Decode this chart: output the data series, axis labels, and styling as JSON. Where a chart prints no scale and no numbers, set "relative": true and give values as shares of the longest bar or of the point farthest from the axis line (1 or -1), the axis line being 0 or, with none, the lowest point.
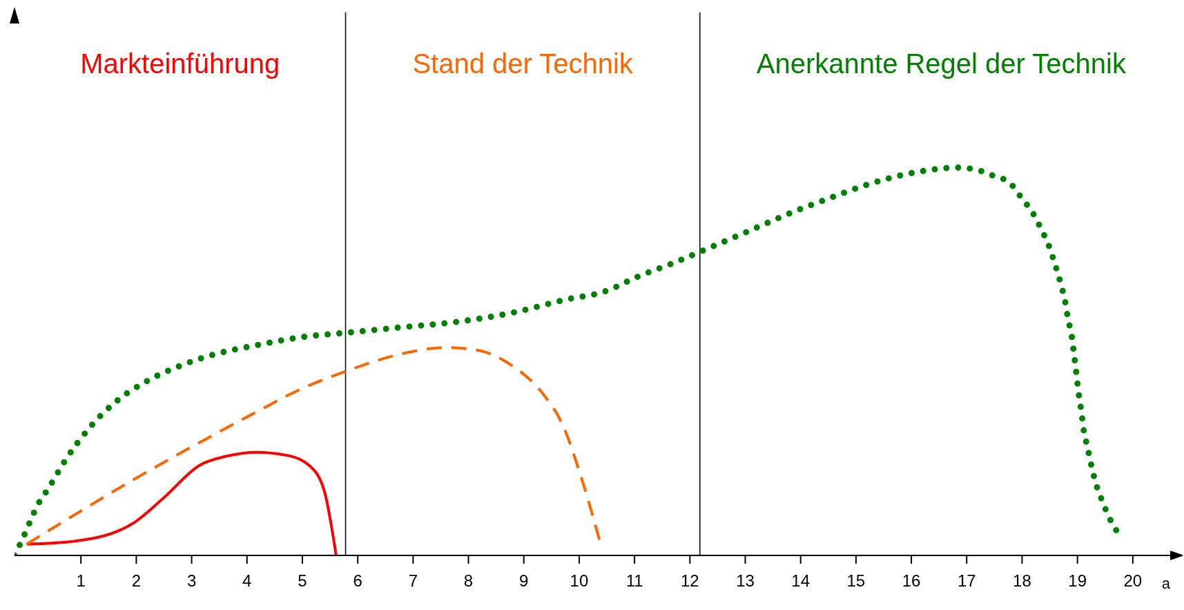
{
  "chart_data": {
    "type": "line",
    "relative": true,
    "xlabel": "a",
    "xlim": [
      -0.2,
      20.9
    ],
    "xticks": [
      1,
      2,
      3,
      4,
      5,
      6,
      7,
      8,
      9,
      10,
      11,
      12,
      13,
      14,
      15,
      16,
      17,
      18,
      19,
      20
    ],
    "grid": false,
    "legend": false,
    "ref_lines": [
      {
        "axis": "x",
        "value": 5.78,
        "color": "#000000"
      },
      {
        "axis": "x",
        "value": 12.18,
        "color": "#000000"
      }
    ],
    "series": [
      {
        "name": "Markteinführung",
        "color": "#ff0000",
        "line_style": "solid",
        "x": [
          0.02,
          0.9,
          1.92,
          2.47,
          3.15,
          3.63,
          4.17,
          4.72,
          5.13,
          5.4,
          5.61
        ],
        "values": [
          0.029,
          0.037,
          0.081,
          0.145,
          0.233,
          0.256,
          0.266,
          0.258,
          0.231,
          0.164,
          0
        ]
      },
      {
        "name": "Stand der Technik",
        "color": "#ff6600",
        "line_style": "dashed",
        "x": [
          0.02,
          0.9,
          1.92,
          2.95,
          4.04,
          4.99,
          5.81,
          6.63,
          7.59,
          8.13,
          8.81,
          9.36,
          9.7,
          10.04,
          10.38
        ],
        "values": [
          0.029,
          0.106,
          0.193,
          0.276,
          0.36,
          0.43,
          0.476,
          0.514,
          0.536,
          0.53,
          0.487,
          0.414,
          0.337,
          0.2,
          0.033
        ]
      },
      {
        "name": "Anerkannte Regel der Technik",
        "color": "#008000",
        "line_style": "dotted",
        "x": [
          -0.2,
          -0.05,
          0.08,
          0.23,
          0.4,
          0.74,
          1.16,
          1.62,
          2.2,
          2.81,
          3.45,
          4.1,
          5.1,
          5.78,
          6.77,
          7.84,
          8.8,
          9.77,
          10.45,
          11.08,
          11.72,
          12.3,
          12.96,
          13.87,
          14.5,
          15.16,
          15.81,
          16.45,
          16.8,
          17.13,
          17.46,
          17.78,
          18.0,
          18.19,
          18.35,
          18.49,
          18.6,
          18.7,
          18.78,
          18.83,
          18.9,
          18.94,
          18.98,
          19.02,
          19.07,
          19.11,
          19.18,
          19.25,
          19.33,
          19.44,
          19.58,
          19.74
        ],
        "values": [
          0,
          0.044,
          0.087,
          0.133,
          0.17,
          0.25,
          0.33,
          0.395,
          0.45,
          0.49,
          0.52,
          0.54,
          0.565,
          0.574,
          0.588,
          0.603,
          0.626,
          0.66,
          0.68,
          0.72,
          0.755,
          0.79,
          0.83,
          0.886,
          0.92,
          0.954,
          0.98,
          0.996,
          1,
          0.996,
          0.98,
          0.96,
          0.92,
          0.884,
          0.84,
          0.796,
          0.748,
          0.7,
          0.653,
          0.61,
          0.563,
          0.516,
          0.47,
          0.42,
          0.372,
          0.326,
          0.28,
          0.233,
          0.187,
          0.143,
          0.096,
          0.056
        ]
      }
    ]
  }
}
